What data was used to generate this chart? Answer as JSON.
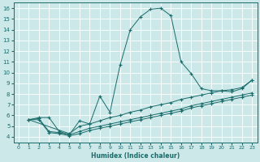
{
  "xlabel": "Humidex (Indice chaleur)",
  "bg_color": "#cce8e8",
  "line_color": "#1a6b6b",
  "xlim": [
    -0.5,
    23.5
  ],
  "ylim": [
    3.5,
    16.5
  ],
  "xticks": [
    0,
    1,
    2,
    3,
    4,
    5,
    6,
    7,
    8,
    9,
    10,
    11,
    12,
    13,
    14,
    15,
    16,
    17,
    18,
    19,
    20,
    21,
    22,
    23
  ],
  "yticks": [
    4,
    5,
    6,
    7,
    8,
    9,
    10,
    11,
    12,
    13,
    14,
    15,
    16
  ],
  "series": [
    {
      "x": [
        1,
        2,
        3,
        4,
        5,
        6,
        7,
        8,
        9,
        10,
        11,
        12,
        13,
        14,
        15,
        16,
        17,
        18,
        19,
        20,
        21,
        22,
        23
      ],
      "y": [
        5.6,
        5.8,
        5.8,
        4.5,
        4.2,
        5.5,
        5.2,
        7.8,
        6.3,
        10.7,
        14.0,
        15.2,
        15.9,
        16.0,
        15.3,
        11.0,
        9.9,
        8.5,
        8.3,
        8.3,
        8.2,
        8.5,
        9.3
      ]
    },
    {
      "x": [
        1,
        5,
        6,
        7,
        8,
        9,
        10,
        11,
        12,
        13,
        14,
        15,
        16,
        17,
        18,
        19,
        20,
        21,
        22,
        23
      ],
      "y": [
        5.6,
        4.3,
        5.0,
        5.2,
        5.5,
        5.8,
        6.0,
        6.3,
        6.5,
        6.8,
        7.0,
        7.2,
        7.5,
        7.7,
        7.9,
        8.1,
        8.3,
        8.4,
        8.6,
        9.3
      ]
    },
    {
      "x": [
        1,
        2,
        3,
        4,
        5,
        6,
        7,
        8,
        9,
        10,
        11,
        12,
        13,
        14,
        15,
        16,
        17,
        18,
        19,
        20,
        21,
        22,
        23
      ],
      "y": [
        5.6,
        5.7,
        4.5,
        4.4,
        4.2,
        4.5,
        4.8,
        5.0,
        5.2,
        5.4,
        5.6,
        5.8,
        6.0,
        6.2,
        6.4,
        6.6,
        6.9,
        7.1,
        7.3,
        7.5,
        7.7,
        7.9,
        8.1
      ]
    },
    {
      "x": [
        1,
        2,
        3,
        4,
        5,
        6,
        7,
        8,
        9,
        10,
        11,
        12,
        13,
        14,
        15,
        16,
        17,
        18,
        19,
        20,
        21,
        22,
        23
      ],
      "y": [
        5.6,
        5.6,
        4.4,
        4.3,
        4.1,
        4.3,
        4.6,
        4.8,
        5.0,
        5.2,
        5.4,
        5.6,
        5.8,
        6.0,
        6.2,
        6.4,
        6.7,
        6.9,
        7.1,
        7.3,
        7.5,
        7.7,
        7.9
      ]
    }
  ]
}
